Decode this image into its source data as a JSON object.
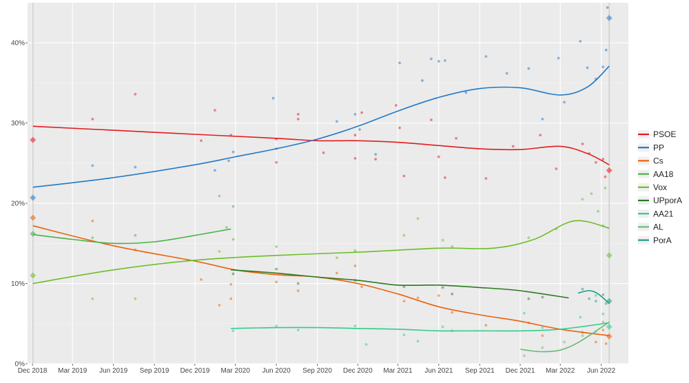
{
  "chart_data": {
    "type": "scatter",
    "title": "",
    "xlabel": "",
    "ylabel": "",
    "ylim": [
      0,
      0.45
    ],
    "xlim": [
      "2018-11-20",
      "2022-08-01"
    ],
    "grid": true,
    "legend_position": "right",
    "y_ticks": [
      {
        "value": 0,
        "label": "0%"
      },
      {
        "value": 0.1,
        "label": "10%"
      },
      {
        "value": 0.2,
        "label": "20%"
      },
      {
        "value": 0.3,
        "label": "30%"
      },
      {
        "value": 0.4,
        "label": "40%"
      }
    ],
    "x_ticks": [
      {
        "date": "2018-12-01",
        "label": "Dec 2018"
      },
      {
        "date": "2019-03-01",
        "label": "Mar 2019"
      },
      {
        "date": "2019-06-01",
        "label": "Jun 2019"
      },
      {
        "date": "2019-09-01",
        "label": "Sep 2019"
      },
      {
        "date": "2019-12-01",
        "label": "Dec 2019"
      },
      {
        "date": "2020-03-01",
        "label": "Mar 2020"
      },
      {
        "date": "2020-06-01",
        "label": "Jun 2020"
      },
      {
        "date": "2020-09-01",
        "label": "Sep 2020"
      },
      {
        "date": "2020-12-01",
        "label": "Dec 2020"
      },
      {
        "date": "2021-03-01",
        "label": "Mar 2021"
      },
      {
        "date": "2021-06-01",
        "label": "Jun 2021"
      },
      {
        "date": "2021-09-01",
        "label": "Sep 2021"
      },
      {
        "date": "2021-12-01",
        "label": "Dec 2021"
      },
      {
        "date": "2022-03-01",
        "label": "Mar 2022"
      },
      {
        "date": "2022-06-01",
        "label": "Jun 2022"
      }
    ],
    "election_dates": [
      "2018-12-02",
      "2022-06-19"
    ],
    "series": [
      {
        "name": "PSOE",
        "color": "#e41a1c",
        "trend": [
          [
            "2018-12-02",
            0.296
          ],
          [
            "2019-06-01",
            0.291
          ],
          [
            "2019-12-01",
            0.286
          ],
          [
            "2020-06-01",
            0.281
          ],
          [
            "2020-09-01",
            0.278
          ],
          [
            "2020-12-01",
            0.278
          ],
          [
            "2021-03-01",
            0.276
          ],
          [
            "2021-06-01",
            0.272
          ],
          [
            "2021-09-01",
            0.268
          ],
          [
            "2021-12-01",
            0.267
          ],
          [
            "2022-03-01",
            0.271
          ],
          [
            "2022-05-01",
            0.262
          ],
          [
            "2022-06-19",
            0.248
          ]
        ],
        "results": [
          [
            "2018-12-02",
            0.279
          ],
          [
            "2022-06-19",
            0.241
          ]
        ],
        "polls": [
          [
            "2019-04-15",
            0.305
          ],
          [
            "2019-07-20",
            0.336
          ],
          [
            "2019-12-15",
            0.278
          ],
          [
            "2020-01-15",
            0.316
          ],
          [
            "2020-02-20",
            0.285
          ],
          [
            "2020-06-01",
            0.28
          ],
          [
            "2020-06-01",
            0.251
          ],
          [
            "2020-07-20",
            0.305
          ],
          [
            "2020-07-20",
            0.311
          ],
          [
            "2020-09-15",
            0.263
          ],
          [
            "2020-11-25",
            0.285
          ],
          [
            "2020-11-25",
            0.256
          ],
          [
            "2020-12-10",
            0.313
          ],
          [
            "2021-01-10",
            0.255
          ],
          [
            "2021-02-25",
            0.322
          ],
          [
            "2021-03-05",
            0.294
          ],
          [
            "2021-03-15",
            0.234
          ],
          [
            "2021-05-15",
            0.304
          ],
          [
            "2021-06-01",
            0.258
          ],
          [
            "2021-06-15",
            0.232
          ],
          [
            "2021-07-10",
            0.281
          ],
          [
            "2021-09-15",
            0.231
          ],
          [
            "2021-11-15",
            0.271
          ],
          [
            "2022-01-15",
            0.285
          ],
          [
            "2022-02-20",
            0.243
          ],
          [
            "2022-04-20",
            0.274
          ],
          [
            "2022-05-05",
            0.262
          ],
          [
            "2022-05-20",
            0.251
          ],
          [
            "2022-06-05",
            0.255
          ],
          [
            "2022-06-10",
            0.233
          ]
        ]
      },
      {
        "name": "PP",
        "color": "#1f78c8",
        "trend": [
          [
            "2018-12-02",
            0.22
          ],
          [
            "2019-06-01",
            0.232
          ],
          [
            "2019-12-01",
            0.248
          ],
          [
            "2020-03-01",
            0.258
          ],
          [
            "2020-06-01",
            0.268
          ],
          [
            "2020-09-01",
            0.28
          ],
          [
            "2020-12-01",
            0.296
          ],
          [
            "2021-03-01",
            0.315
          ],
          [
            "2021-06-01",
            0.332
          ],
          [
            "2021-09-01",
            0.343
          ],
          [
            "2021-12-01",
            0.344
          ],
          [
            "2022-03-01",
            0.335
          ],
          [
            "2022-05-01",
            0.345
          ],
          [
            "2022-06-19",
            0.371
          ]
        ],
        "results": [
          [
            "2018-12-02",
            0.207
          ],
          [
            "2022-06-19",
            0.431
          ]
        ],
        "polls": [
          [
            "2019-04-15",
            0.247
          ],
          [
            "2019-07-20",
            0.245
          ],
          [
            "2020-01-15",
            0.241
          ],
          [
            "2020-02-15",
            0.253
          ],
          [
            "2020-02-25",
            0.264
          ],
          [
            "2020-05-25",
            0.331
          ],
          [
            "2020-06-01",
            0.268
          ],
          [
            "2020-10-15",
            0.302
          ],
          [
            "2020-11-25",
            0.311
          ],
          [
            "2020-12-05",
            0.292
          ],
          [
            "2021-01-10",
            0.261
          ],
          [
            "2021-03-05",
            0.375
          ],
          [
            "2021-04-25",
            0.353
          ],
          [
            "2021-05-15",
            0.38
          ],
          [
            "2021-06-01",
            0.377
          ],
          [
            "2021-06-15",
            0.378
          ],
          [
            "2021-08-01",
            0.338
          ],
          [
            "2021-09-15",
            0.383
          ],
          [
            "2021-11-01",
            0.362
          ],
          [
            "2021-12-20",
            0.368
          ],
          [
            "2022-01-20",
            0.305
          ],
          [
            "2022-02-25",
            0.381
          ],
          [
            "2022-03-10",
            0.326
          ],
          [
            "2022-04-15",
            0.402
          ],
          [
            "2022-05-01",
            0.369
          ],
          [
            "2022-05-20",
            0.355
          ],
          [
            "2022-06-05",
            0.37
          ],
          [
            "2022-06-15",
            0.444
          ],
          [
            "2022-06-12",
            0.391
          ]
        ]
      },
      {
        "name": "Cs",
        "color": "#ec5f08",
        "trend": [
          [
            "2018-12-02",
            0.172
          ],
          [
            "2019-06-01",
            0.147
          ],
          [
            "2019-12-01",
            0.128
          ],
          [
            "2020-03-01",
            0.117
          ],
          [
            "2020-06-01",
            0.111
          ],
          [
            "2020-09-01",
            0.108
          ],
          [
            "2020-12-01",
            0.1
          ],
          [
            "2021-03-01",
            0.087
          ],
          [
            "2021-06-01",
            0.071
          ],
          [
            "2021-09-01",
            0.061
          ],
          [
            "2021-12-01",
            0.053
          ],
          [
            "2022-03-01",
            0.043
          ],
          [
            "2022-06-19",
            0.035
          ]
        ],
        "results": [
          [
            "2018-12-02",
            0.182
          ],
          [
            "2022-06-19",
            0.034
          ]
        ],
        "polls": [
          [
            "2019-04-15",
            0.178
          ],
          [
            "2019-07-20",
            0.142
          ],
          [
            "2019-12-15",
            0.105
          ],
          [
            "2020-01-25",
            0.073
          ],
          [
            "2020-02-20",
            0.099
          ],
          [
            "2020-02-20",
            0.081
          ],
          [
            "2020-06-01",
            0.102
          ],
          [
            "2020-07-20",
            0.091
          ],
          [
            "2020-10-15",
            0.113
          ],
          [
            "2020-11-25",
            0.122
          ],
          [
            "2020-12-10",
            0.096
          ],
          [
            "2021-03-15",
            0.078
          ],
          [
            "2021-04-15",
            0.082
          ],
          [
            "2021-06-01",
            0.085
          ],
          [
            "2021-07-01",
            0.064
          ],
          [
            "2021-09-15",
            0.048
          ],
          [
            "2021-12-20",
            0.051
          ],
          [
            "2022-01-20",
            0.035
          ],
          [
            "2022-04-20",
            0.039
          ],
          [
            "2022-05-20",
            0.027
          ],
          [
            "2022-06-05",
            0.042
          ],
          [
            "2022-06-12",
            0.025
          ]
        ]
      },
      {
        "name": "AA18",
        "color": "#4daf4a",
        "trend": [
          [
            "2018-12-02",
            0.161
          ],
          [
            "2019-03-01",
            0.155
          ],
          [
            "2019-06-01",
            0.15
          ],
          [
            "2019-09-01",
            0.152
          ],
          [
            "2019-12-01",
            0.16
          ],
          [
            "2020-02-20",
            0.168
          ]
        ],
        "results": [
          [
            "2018-12-02",
            0.162
          ]
        ],
        "polls": [
          [
            "2019-04-15",
            0.157
          ],
          [
            "2019-07-20",
            0.16
          ],
          [
            "2020-01-25",
            0.209
          ],
          [
            "2020-02-10",
            0.17
          ],
          [
            "2020-02-25",
            0.196
          ],
          [
            "2020-02-25",
            0.155
          ]
        ]
      },
      {
        "name": "Vox",
        "color": "#6abd25",
        "trend": [
          [
            "2018-12-02",
            0.1
          ],
          [
            "2019-06-01",
            0.117
          ],
          [
            "2019-12-01",
            0.129
          ],
          [
            "2020-06-01",
            0.135
          ],
          [
            "2020-12-01",
            0.139
          ],
          [
            "2021-06-01",
            0.144
          ],
          [
            "2021-10-01",
            0.144
          ],
          [
            "2022-01-01",
            0.155
          ],
          [
            "2022-04-01",
            0.178
          ],
          [
            "2022-06-19",
            0.169
          ]
        ],
        "results": [
          [
            "2018-12-02",
            0.11
          ],
          [
            "2022-06-19",
            0.135
          ]
        ],
        "polls": [
          [
            "2019-04-15",
            0.081
          ],
          [
            "2019-07-20",
            0.081
          ],
          [
            "2020-01-25",
            0.14
          ],
          [
            "2020-06-01",
            0.146
          ],
          [
            "2020-10-15",
            0.132
          ],
          [
            "2020-11-25",
            0.141
          ],
          [
            "2021-03-15",
            0.16
          ],
          [
            "2021-04-15",
            0.181
          ],
          [
            "2021-06-10",
            0.154
          ],
          [
            "2021-07-01",
            0.146
          ],
          [
            "2021-12-20",
            0.157
          ],
          [
            "2022-02-20",
            0.168
          ],
          [
            "2022-04-20",
            0.205
          ],
          [
            "2022-05-10",
            0.212
          ],
          [
            "2022-05-25",
            0.19
          ],
          [
            "2022-06-10",
            0.219
          ],
          [
            "2022-06-05",
            0.172
          ]
        ]
      },
      {
        "name": "UPporA",
        "color": "#2b7a1f",
        "trend": [
          [
            "2020-02-20",
            0.117
          ],
          [
            "2020-06-01",
            0.113
          ],
          [
            "2020-09-01",
            0.108
          ],
          [
            "2020-12-01",
            0.104
          ],
          [
            "2021-03-01",
            0.098
          ],
          [
            "2021-06-01",
            0.098
          ],
          [
            "2021-09-01",
            0.095
          ],
          [
            "2021-12-01",
            0.091
          ],
          [
            "2022-03-20",
            0.082
          ]
        ],
        "polls": [
          [
            "2020-02-25",
            0.112
          ],
          [
            "2020-06-01",
            0.118
          ],
          [
            "2020-07-20",
            0.1
          ],
          [
            "2020-11-25",
            0.104
          ],
          [
            "2021-03-15",
            0.096
          ],
          [
            "2021-06-10",
            0.095
          ],
          [
            "2021-07-01",
            0.087
          ],
          [
            "2021-12-20",
            0.081
          ],
          [
            "2022-01-20",
            0.083
          ]
        ]
      },
      {
        "name": "AA21",
        "color": "#2ecc8a",
        "trend": [
          [
            "2020-02-20",
            0.044
          ],
          [
            "2020-06-01",
            0.045
          ],
          [
            "2020-09-01",
            0.045
          ],
          [
            "2020-12-01",
            0.044
          ],
          [
            "2021-03-01",
            0.043
          ],
          [
            "2021-06-01",
            0.041
          ],
          [
            "2021-09-01",
            0.041
          ],
          [
            "2021-12-01",
            0.041
          ],
          [
            "2022-03-01",
            0.043
          ],
          [
            "2022-06-19",
            0.051
          ]
        ],
        "results": [
          [
            "2022-06-19",
            0.046
          ]
        ],
        "polls": [
          [
            "2020-02-25",
            0.041
          ],
          [
            "2020-06-01",
            0.047
          ],
          [
            "2020-07-20",
            0.042
          ],
          [
            "2020-11-25",
            0.047
          ],
          [
            "2020-12-20",
            0.024
          ],
          [
            "2021-03-15",
            0.036
          ],
          [
            "2021-04-15",
            0.028
          ],
          [
            "2021-06-10",
            0.046
          ],
          [
            "2021-07-01",
            0.041
          ],
          [
            "2021-12-10",
            0.063
          ],
          [
            "2022-01-20",
            0.045
          ],
          [
            "2022-04-15",
            0.058
          ],
          [
            "2022-05-20",
            0.085
          ],
          [
            "2022-06-05",
            0.062
          ]
        ]
      },
      {
        "name": "AL",
        "color": "#66bb77",
        "trend": [
          [
            "2021-12-01",
            0.018
          ],
          [
            "2022-01-15",
            0.015
          ],
          [
            "2022-03-01",
            0.017
          ],
          [
            "2022-04-15",
            0.028
          ],
          [
            "2022-06-19",
            0.052
          ]
        ],
        "polls": [
          [
            "2021-12-10",
            0.01
          ],
          [
            "2022-01-20",
            0.02
          ],
          [
            "2022-03-10",
            0.027
          ],
          [
            "2022-04-20",
            0.035
          ],
          [
            "2022-05-20",
            0.04
          ],
          [
            "2022-06-05",
            0.052
          ]
        ]
      },
      {
        "name": "PorA",
        "color": "#1a9a82",
        "trend": [
          [
            "2022-04-10",
            0.088
          ],
          [
            "2022-05-05",
            0.091
          ],
          [
            "2022-05-25",
            0.087
          ],
          [
            "2022-06-19",
            0.075
          ]
        ],
        "results": [
          [
            "2022-06-19",
            0.078
          ]
        ],
        "polls": [
          [
            "2022-04-20",
            0.093
          ],
          [
            "2022-05-05",
            0.081
          ],
          [
            "2022-05-20",
            0.078
          ],
          [
            "2022-06-05",
            0.086
          ],
          [
            "2022-06-12",
            0.075
          ]
        ]
      }
    ]
  }
}
